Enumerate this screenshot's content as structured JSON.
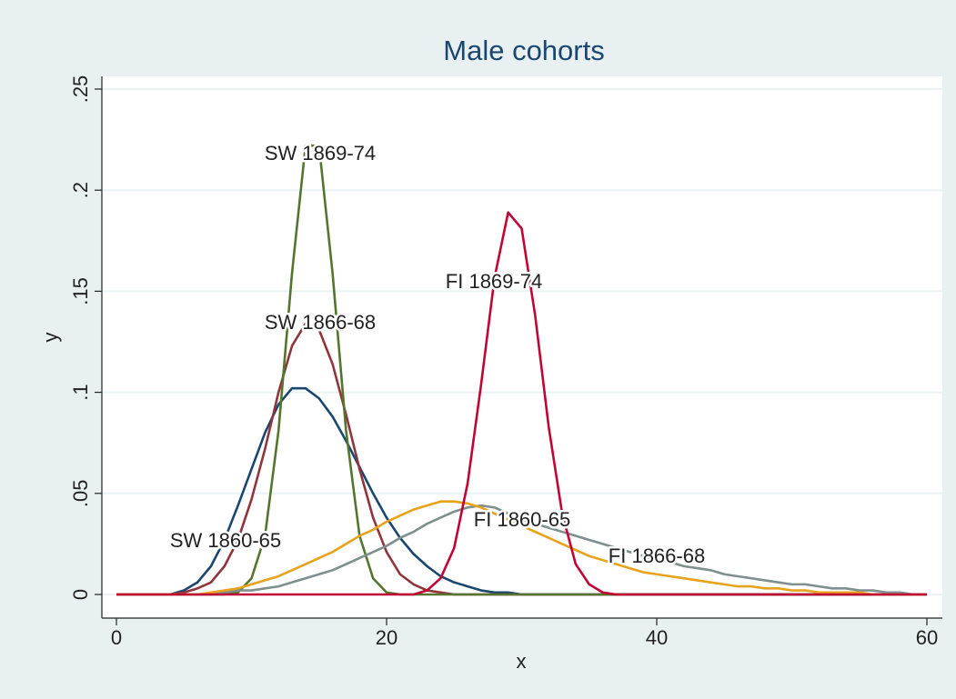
{
  "chart_data": {
    "type": "line",
    "title": "Male cohorts",
    "x_label": "x",
    "y_label": "y",
    "xlim": [
      0,
      60
    ],
    "ylim": [
      0,
      0.25
    ],
    "xticks": [
      0,
      20,
      40,
      60
    ],
    "yticks": [
      {
        "value": 0,
        "label": "0"
      },
      {
        "value": 0.05,
        "label": ".05"
      },
      {
        "value": 0.1,
        "label": ".1"
      },
      {
        "value": 0.15,
        "label": ".15"
      },
      {
        "value": 0.2,
        "label": ".2"
      },
      {
        "value": 0.25,
        "label": ".25"
      }
    ],
    "grid": true,
    "x": [
      0,
      1,
      2,
      3,
      4,
      5,
      6,
      7,
      8,
      9,
      10,
      11,
      12,
      13,
      14,
      15,
      16,
      17,
      18,
      19,
      20,
      21,
      22,
      23,
      24,
      25,
      26,
      27,
      28,
      29,
      30,
      31,
      32,
      33,
      34,
      35,
      36,
      37,
      38,
      39,
      40,
      41,
      42,
      43,
      44,
      45,
      46,
      47,
      48,
      49,
      50,
      51,
      52,
      53,
      54,
      55,
      56,
      57,
      58,
      59,
      60
    ],
    "series": [
      {
        "name": "SW 1860-65",
        "color": "#1a476f",
        "values": [
          0,
          0,
          0,
          0,
          0,
          0.002,
          0.006,
          0.014,
          0.027,
          0.044,
          0.062,
          0.08,
          0.094,
          0.102,
          0.102,
          0.097,
          0.088,
          0.076,
          0.063,
          0.05,
          0.038,
          0.028,
          0.02,
          0.014,
          0.009,
          0.006,
          0.004,
          0.002,
          0.001,
          0.001,
          0,
          0,
          0,
          0,
          0,
          0,
          0,
          0,
          0,
          0,
          0,
          0,
          0,
          0,
          0,
          0,
          0,
          0,
          0,
          0,
          0,
          0,
          0,
          0,
          0,
          0,
          0,
          0,
          0,
          0,
          0
        ]
      },
      {
        "name": "SW 1866-68",
        "color": "#90353b",
        "values": [
          0,
          0,
          0,
          0,
          0,
          0.001,
          0.003,
          0.006,
          0.014,
          0.027,
          0.047,
          0.072,
          0.1,
          0.123,
          0.134,
          0.131,
          0.114,
          0.089,
          0.062,
          0.038,
          0.021,
          0.01,
          0.005,
          0.002,
          0.001,
          0,
          0,
          0,
          0,
          0,
          0,
          0,
          0,
          0,
          0,
          0,
          0,
          0,
          0,
          0,
          0,
          0,
          0,
          0,
          0,
          0,
          0,
          0,
          0,
          0,
          0,
          0,
          0,
          0,
          0,
          0,
          0,
          0,
          0,
          0,
          0
        ]
      },
      {
        "name": "SW 1869-74",
        "color": "#55752f",
        "values": [
          0,
          0,
          0,
          0,
          0,
          0,
          0,
          0,
          0,
          0.001,
          0.008,
          0.029,
          0.081,
          0.159,
          0.222,
          0.222,
          0.159,
          0.081,
          0.029,
          0.008,
          0.001,
          0,
          0,
          0,
          0,
          0,
          0,
          0,
          0,
          0,
          0,
          0,
          0,
          0,
          0,
          0,
          0,
          0,
          0,
          0,
          0,
          0,
          0,
          0,
          0,
          0,
          0,
          0,
          0,
          0,
          0,
          0,
          0,
          0,
          0,
          0,
          0,
          0,
          0,
          0,
          0
        ]
      },
      {
        "name": "FI 1860-65",
        "color": "#7d8f8e",
        "values": [
          0,
          0,
          0,
          0,
          0,
          0,
          0,
          0,
          0.001,
          0.002,
          0.002,
          0.003,
          0.004,
          0.006,
          0.008,
          0.01,
          0.012,
          0.015,
          0.018,
          0.021,
          0.024,
          0.028,
          0.031,
          0.035,
          0.038,
          0.041,
          0.043,
          0.044,
          0.043,
          0.04,
          0.037,
          0.035,
          0.033,
          0.031,
          0.029,
          0.027,
          0.025,
          0.023,
          0.021,
          0.019,
          0.017,
          0.016,
          0.014,
          0.013,
          0.012,
          0.01,
          0.009,
          0.008,
          0.007,
          0.006,
          0.005,
          0.005,
          0.004,
          0.003,
          0.003,
          0.002,
          0.002,
          0.001,
          0.001,
          0,
          0
        ]
      },
      {
        "name": "FI 1866-68",
        "color": "#e8a21c",
        "values": [
          0,
          0,
          0,
          0,
          0,
          0,
          0,
          0.001,
          0.002,
          0.003,
          0.005,
          0.007,
          0.009,
          0.012,
          0.015,
          0.018,
          0.021,
          0.025,
          0.029,
          0.032,
          0.036,
          0.039,
          0.042,
          0.044,
          0.046,
          0.046,
          0.045,
          0.043,
          0.04,
          0.037,
          0.034,
          0.031,
          0.028,
          0.025,
          0.022,
          0.019,
          0.017,
          0.015,
          0.013,
          0.011,
          0.01,
          0.009,
          0.008,
          0.007,
          0.006,
          0.005,
          0.004,
          0.004,
          0.003,
          0.003,
          0.002,
          0.002,
          0.001,
          0.001,
          0.001,
          0.001,
          0,
          0,
          0,
          0,
          0
        ]
      },
      {
        "name": "FI 1869-74",
        "color": "#c10534",
        "values": [
          0,
          0,
          0,
          0,
          0,
          0,
          0,
          0,
          0,
          0,
          0,
          0,
          0,
          0,
          0,
          0,
          0,
          0,
          0,
          0,
          0,
          0,
          0,
          0.002,
          0.008,
          0.023,
          0.055,
          0.104,
          0.157,
          0.189,
          0.181,
          0.138,
          0.083,
          0.04,
          0.015,
          0.005,
          0.001,
          0,
          0,
          0,
          0,
          0,
          0,
          0,
          0,
          0,
          0,
          0,
          0,
          0,
          0,
          0,
          0,
          0,
          0,
          0,
          0,
          0,
          0,
          0,
          0
        ]
      }
    ]
  }
}
